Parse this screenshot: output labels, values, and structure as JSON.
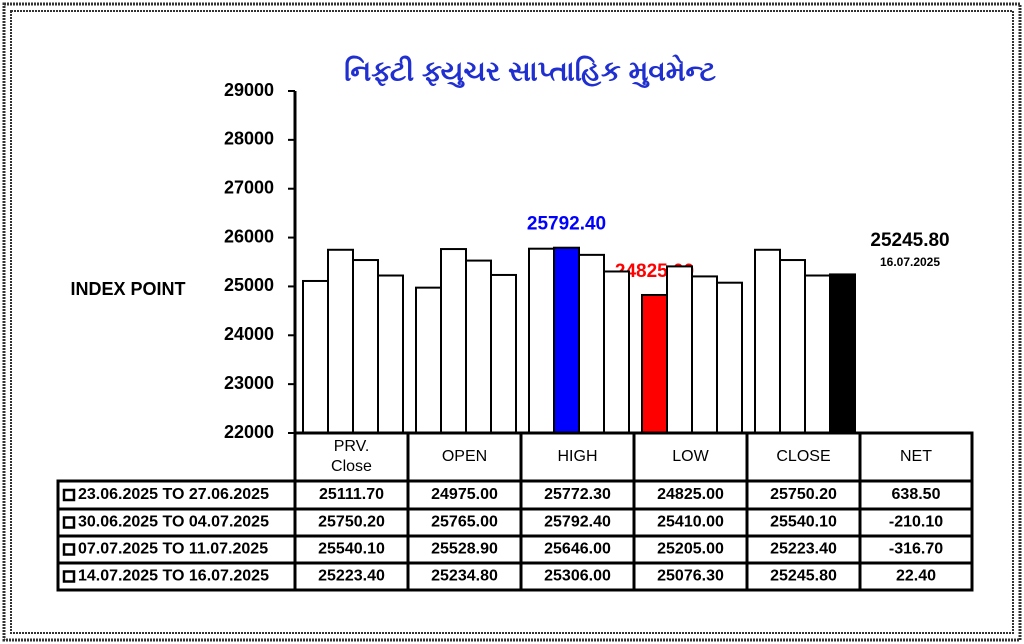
{
  "chart_data": {
    "type": "bar",
    "title": "નિફ્ટી ફ્યુચર સાપ્તાહિક મુવમેન્ટ",
    "y_label": "INDEX POINT",
    "categories": [
      "PRV.\nClose",
      "OPEN",
      "HIGH",
      "LOW",
      "CLOSE"
    ],
    "ylim": [
      22000,
      29000
    ],
    "yticks": [
      22000,
      23000,
      24000,
      25000,
      26000,
      27000,
      28000,
      29000
    ],
    "series": [
      {
        "name": "23.06.2025 TO 27.06.2025",
        "values": [
          25111.7,
          24975,
          25772.3,
          24825,
          25750.2
        ],
        "value_labels": [
          "25111.70",
          "24975.00",
          "25772.30",
          "24825.00",
          "25750.20"
        ],
        "colors": [
          "#ffffff",
          "#ffffff",
          "#ffffff",
          "#ff0000",
          "#ffffff"
        ]
      },
      {
        "name": "30.06.2025 TO 04.07.2025",
        "values": [
          25750.2,
          25765,
          25792.4,
          25410,
          25540.1
        ],
        "value_labels": [
          "25750.20",
          "25765.00",
          "25792.40",
          "25410.00",
          "25540.10"
        ],
        "colors": [
          "#ffffff",
          "#ffffff",
          "#0000ff",
          "#ffffff",
          "#ffffff"
        ]
      },
      {
        "name": "07.07.2025 TO 11.07.2025",
        "values": [
          25540.1,
          25528.9,
          25646,
          25205,
          25223.4
        ],
        "value_labels": [
          "25540.10",
          "25528.90",
          "25646.00",
          "25205.00",
          "25223.40"
        ],
        "colors": [
          "#ffffff",
          "#ffffff",
          "#ffffff",
          "#ffffff",
          "#ffffff"
        ]
      },
      {
        "name": "14.07.2025 TO 16.07.2025",
        "values": [
          25223.4,
          25234.8,
          25306,
          25076.3,
          25245.8
        ],
        "value_labels": [
          "25223.40",
          "25234.80",
          "25306.00",
          "25076.30",
          "25245.80"
        ],
        "colors": [
          "#ffffff",
          "#ffffff",
          "#ffffff",
          "#ffffff",
          "#000000"
        ]
      }
    ],
    "net": {
      "name": "NET",
      "values": [
        638.5,
        -210.1,
        -316.7,
        22.4
      ],
      "value_labels": [
        "638.50",
        "-210.10",
        "-316.70",
        "22.40"
      ]
    },
    "latest_date": "16.07.2025"
  }
}
